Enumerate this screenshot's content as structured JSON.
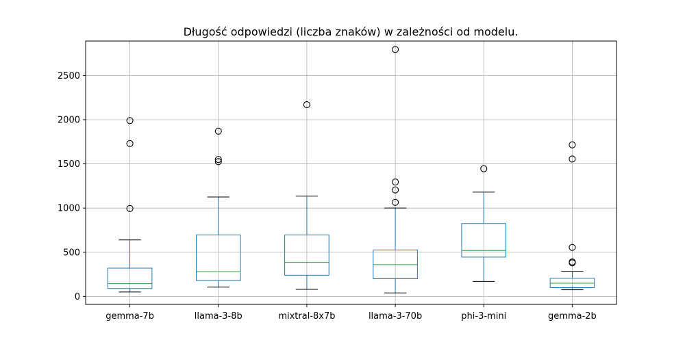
{
  "chart_data": {
    "type": "boxplot",
    "title": "Długość odpowiedzi (liczba znaków) w zależności od modelu.",
    "xlabel": "",
    "ylabel": "",
    "categories": [
      "gemma-7b",
      "llama-3-8b",
      "mixtral-8x7b",
      "llama-3-70b",
      "phi-3-mini",
      "gemma-2b"
    ],
    "ylim": [
      -90,
      2890
    ],
    "yticks": [
      0,
      500,
      1000,
      1500,
      2000,
      2500
    ],
    "ytick_labels": [
      "0",
      "500",
      "1000",
      "1500",
      "2000",
      "2500"
    ],
    "grid": true,
    "boxes": [
      {
        "name": "gemma-7b",
        "whisker_low": 50,
        "q1": 90,
        "median": 145,
        "q3": 320,
        "whisker_high": 640,
        "outliers": [
          995,
          1730,
          1990
        ]
      },
      {
        "name": "llama-3-8b",
        "whisker_low": 105,
        "q1": 180,
        "median": 280,
        "q3": 695,
        "whisker_high": 1125,
        "outliers": [
          1525,
          1550,
          1870
        ]
      },
      {
        "name": "mixtral-8x7b",
        "whisker_low": 80,
        "q1": 240,
        "median": 385,
        "q3": 695,
        "whisker_high": 1135,
        "outliers": [
          2170
        ]
      },
      {
        "name": "llama-3-70b",
        "whisker_low": 40,
        "q1": 200,
        "median": 360,
        "q3": 525,
        "whisker_high": 1000,
        "outliers": [
          1065,
          1205,
          1295,
          2795
        ]
      },
      {
        "name": "phi-3-mini",
        "whisker_low": 170,
        "q1": 445,
        "median": 520,
        "q3": 825,
        "whisker_high": 1180,
        "outliers": [
          1445
        ]
      },
      {
        "name": "gemma-2b",
        "whisker_low": 75,
        "q1": 100,
        "median": 150,
        "q3": 205,
        "whisker_high": 285,
        "outliers": [
          380,
          390,
          555,
          1555,
          1715
        ]
      }
    ],
    "colors": {
      "box": "#1f77b4",
      "median": "#2ca02c",
      "whisker_cap": "#000000",
      "outlier": "#000000",
      "grid": "#b0b0b0",
      "axis": "#000000"
    }
  }
}
